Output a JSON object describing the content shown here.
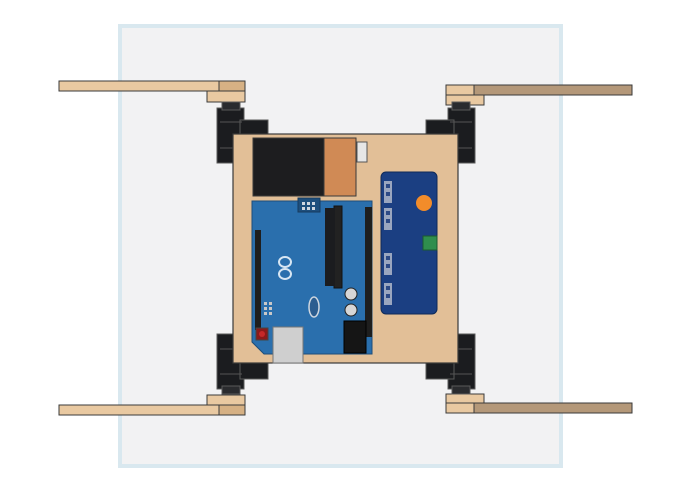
{
  "scene": {
    "title": "",
    "components": [
      {
        "name": "workplane"
      },
      {
        "name": "chassis-plate"
      },
      {
        "name": "battery-pack"
      },
      {
        "name": "arduino-board"
      },
      {
        "name": "servo-driver-board"
      },
      {
        "name": "servo-front-left"
      },
      {
        "name": "servo-front-right"
      },
      {
        "name": "servo-rear-left"
      },
      {
        "name": "servo-rear-right"
      },
      {
        "name": "leg-front-left"
      },
      {
        "name": "leg-front-right"
      },
      {
        "name": "leg-rear-left"
      },
      {
        "name": "leg-rear-right"
      }
    ]
  },
  "colors": {
    "background": "#ffffff",
    "workplane_fill": "#f2f2f3",
    "workplane_border": "#d9e8ef",
    "chassis": "#e2bf97",
    "leg": "#e9c9a1",
    "leg_dark": "#b49879",
    "servo": "#1b1c1f",
    "battery": "#1d1d1f",
    "battery_orange": "#d08a55",
    "arduino": "#2a6fad",
    "driver": "#1b3f82",
    "driver_knob": "#f28c2a",
    "terminal_green": "#2f8e4d",
    "outline": "#3a3a3a"
  }
}
